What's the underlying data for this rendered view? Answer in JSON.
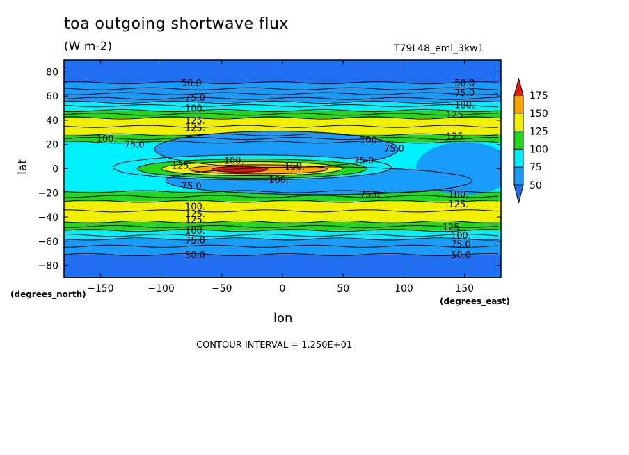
{
  "title": "toa outgoing shortwave flux",
  "units": "(W m-2)",
  "dataset": "T79L48_eml_3kw1",
  "xlabel": "lon",
  "ylabel": "lat",
  "x_units_label": "(degrees_east)",
  "y_units_label": "(degrees_north)",
  "contour_interval": "CONTOUR INTERVAL = 1.250E+01",
  "colors": {
    "lt50": "#1f6ff0",
    "50_75": "#199bfa",
    "75_100": "#00f0ff",
    "100_125": "#22d81a",
    "125_150": "#f0f000",
    "150_175": "#ffa600",
    "gt175": "#ee1111"
  },
  "chart_data": {
    "type": "heatmap",
    "subtype": "filled-contour",
    "xlim": [
      -180,
      180
    ],
    "ylim": [
      -90,
      90
    ],
    "x_ticks": [
      -150,
      -100,
      -50,
      0,
      50,
      100,
      150
    ],
    "x_tick_labels": [
      "−150",
      "−100",
      "−50",
      "0",
      "50",
      "100",
      "150"
    ],
    "y_ticks": [
      -80,
      -60,
      -40,
      -20,
      0,
      20,
      40,
      60,
      80
    ],
    "y_tick_labels": [
      "−80",
      "−60",
      "−40",
      "−20",
      "0",
      "20",
      "40",
      "60",
      "80"
    ],
    "levels": [
      50,
      75,
      100,
      125,
      150,
      175
    ],
    "colorbar_labels": [
      "50",
      "75",
      "100",
      "125",
      "150",
      "175"
    ],
    "contour_labels": [
      {
        "text": "50.0",
        "lon": -75,
        "lat": 71
      },
      {
        "text": "75.0",
        "lon": -72,
        "lat": 59
      },
      {
        "text": "100.",
        "lon": -72,
        "lat": 50
      },
      {
        "text": "125.",
        "lon": -72,
        "lat": 40
      },
      {
        "text": "125.",
        "lon": -72,
        "lat": 34
      },
      {
        "text": "100.",
        "lon": -145,
        "lat": 25
      },
      {
        "text": "75.0",
        "lon": -122,
        "lat": 20
      },
      {
        "text": "125.",
        "lon": -83,
        "lat": 3
      },
      {
        "text": "100.",
        "lon": -40,
        "lat": 7
      },
      {
        "text": "150.",
        "lon": 10,
        "lat": 2
      },
      {
        "text": "75.0",
        "lon": 67,
        "lat": 7
      },
      {
        "text": "100.",
        "lon": 72,
        "lat": 24
      },
      {
        "text": "75.0",
        "lon": 92,
        "lat": 17
      },
      {
        "text": "100.",
        "lon": -3,
        "lat": -9
      },
      {
        "text": "75.0",
        "lon": -75,
        "lat": -14
      },
      {
        "text": "75.0",
        "lon": 72,
        "lat": -21
      },
      {
        "text": "100.",
        "lon": -72,
        "lat": -31
      },
      {
        "text": "125.",
        "lon": -72,
        "lat": -37
      },
      {
        "text": "125.",
        "lon": -72,
        "lat": -42
      },
      {
        "text": "100.",
        "lon": -72,
        "lat": -51
      },
      {
        "text": "75.0",
        "lon": -72,
        "lat": -59
      },
      {
        "text": "50.0",
        "lon": -72,
        "lat": -71
      },
      {
        "text": "50.0",
        "lon": 150,
        "lat": 71
      },
      {
        "text": "75.0",
        "lon": 150,
        "lat": 63
      },
      {
        "text": "100.",
        "lon": 150,
        "lat": 53
      },
      {
        "text": "125.",
        "lon": 143,
        "lat": 45
      },
      {
        "text": "125.",
        "lon": 143,
        "lat": 27
      },
      {
        "text": "100.",
        "lon": 145,
        "lat": -21
      },
      {
        "text": "125.",
        "lon": 145,
        "lat": -29
      },
      {
        "text": "125.",
        "lon": 140,
        "lat": -48
      },
      {
        "text": "100.",
        "lon": 147,
        "lat": -55
      },
      {
        "text": "75.0",
        "lon": 147,
        "lat": -62
      },
      {
        "text": "50.0",
        "lon": 147,
        "lat": -71
      }
    ]
  }
}
